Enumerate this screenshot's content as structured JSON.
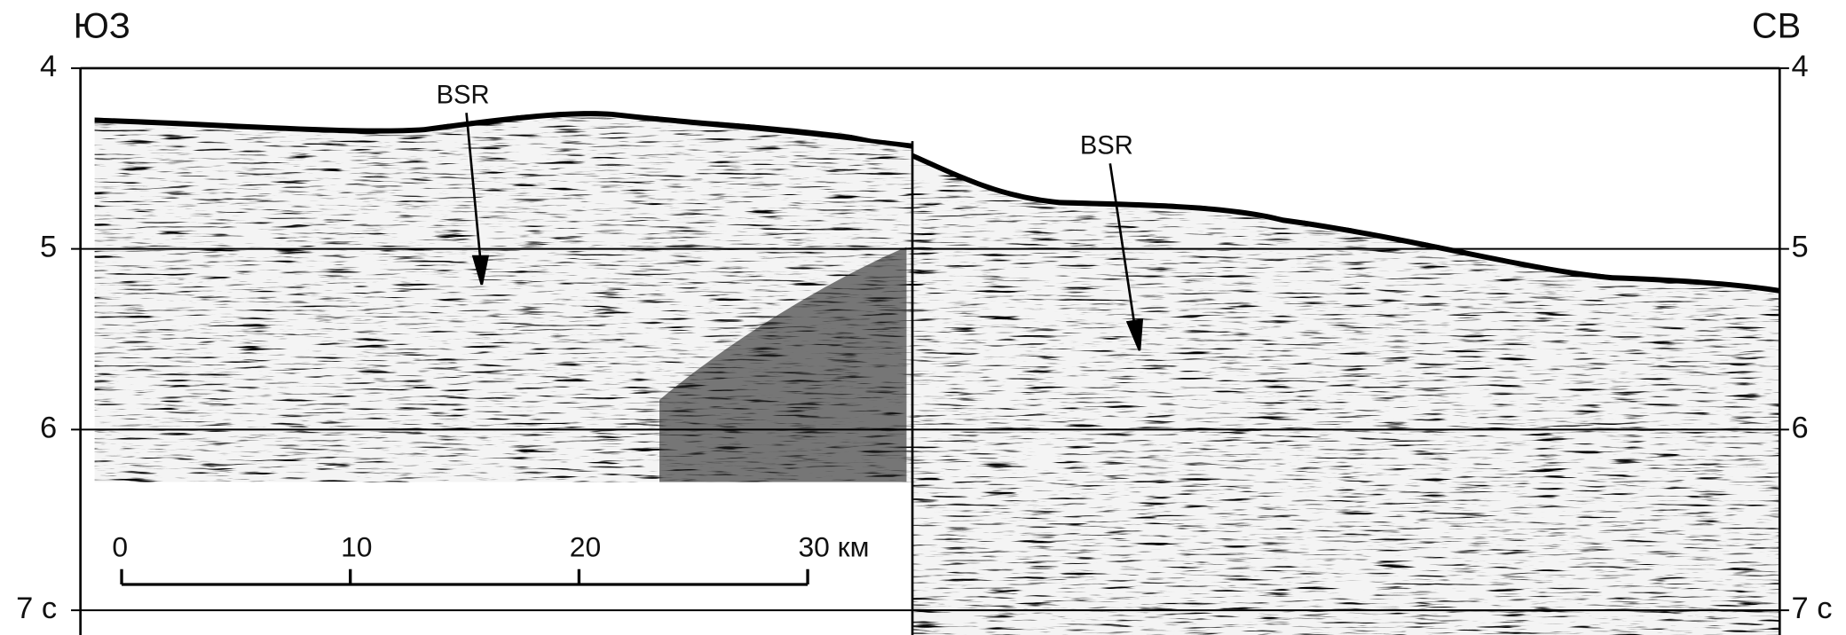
{
  "left_corner": "ЮЗ",
  "right_corner": "СВ",
  "time_axis": {
    "lim": [
      4,
      7
    ],
    "ticks": [
      4,
      5,
      6,
      {
        "value": 7,
        "label": "7 с"
      }
    ]
  },
  "annotations": [
    "BSR",
    "BSR"
  ],
  "scale_bar": {
    "lim": [
      0,
      30
    ],
    "ticks": [
      0,
      10,
      20,
      {
        "value": 30,
        "label": "30 км"
      }
    ]
  }
}
